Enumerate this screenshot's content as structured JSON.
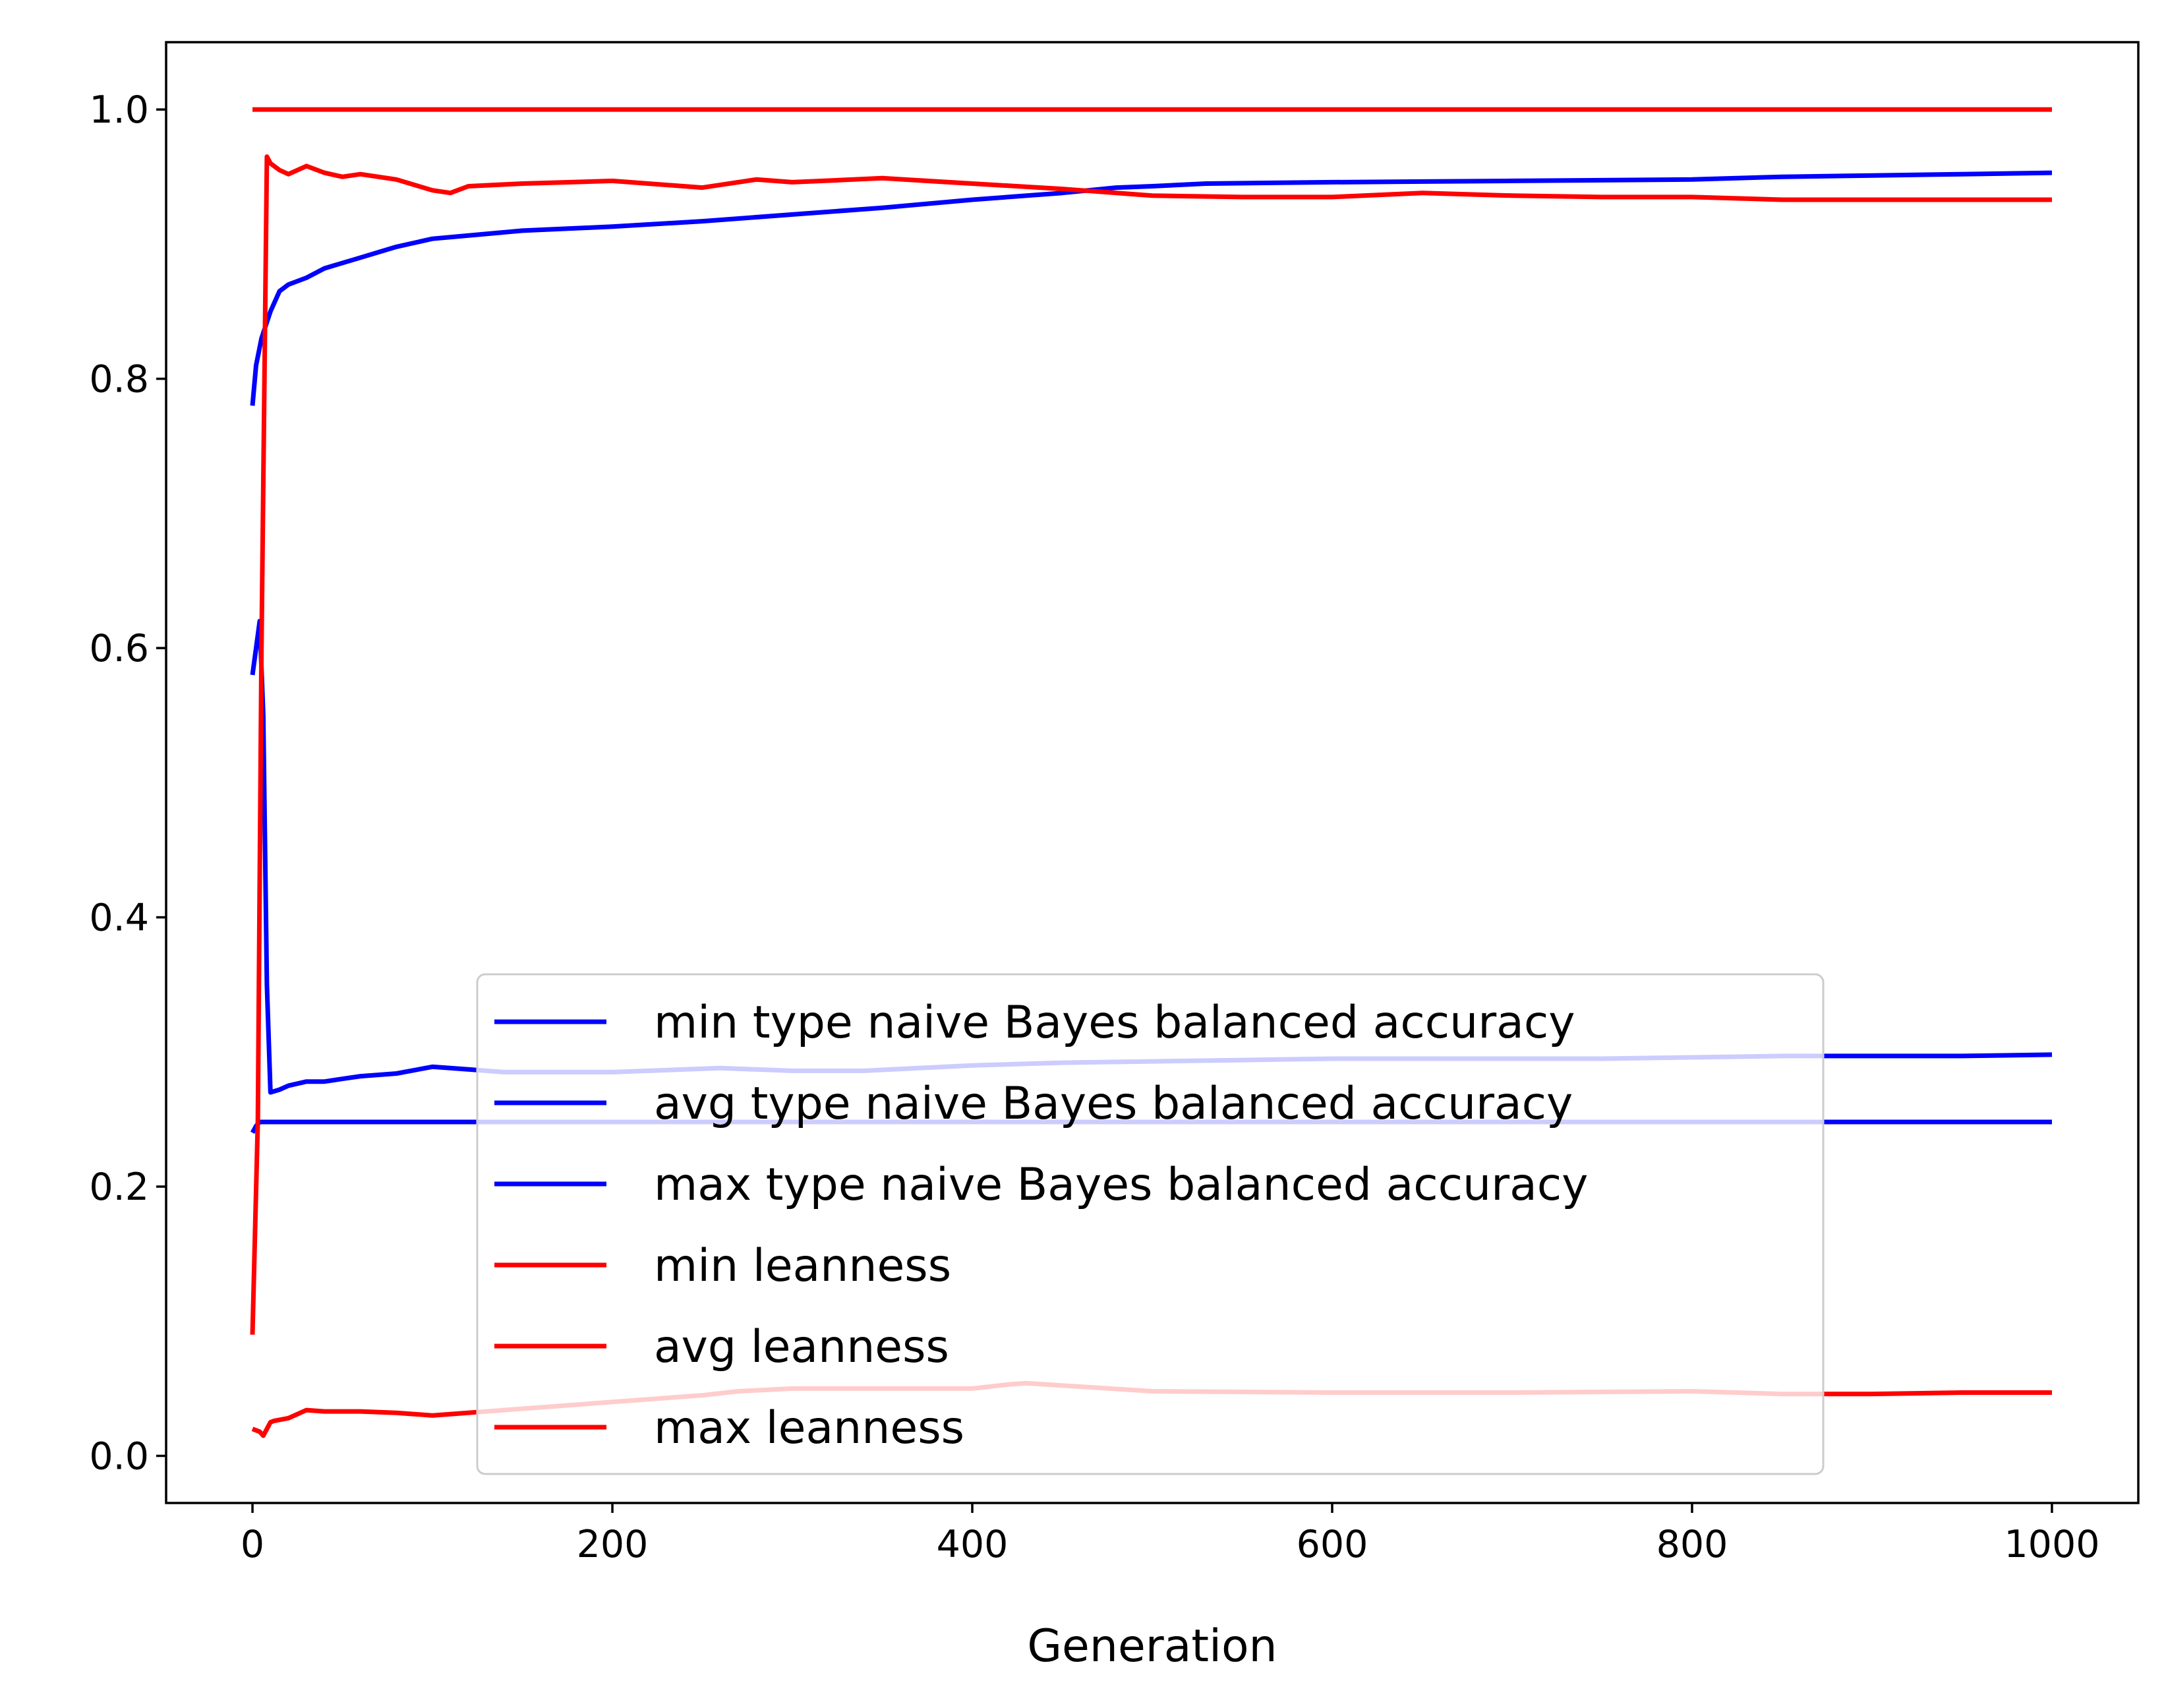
{
  "chart_data": {
    "type": "line",
    "title": "",
    "xlabel": "Generation",
    "ylabel": "",
    "xlim": [
      -48,
      1048
    ],
    "ylim": [
      -0.035,
      1.05
    ],
    "xticks": [
      0,
      200,
      400,
      600,
      800,
      1000
    ],
    "xtick_labels": [
      "0",
      "200",
      "400",
      "600",
      "800",
      "1000"
    ],
    "yticks": [
      0.0,
      0.2,
      0.4,
      0.6,
      0.8,
      1.0
    ],
    "ytick_labels": [
      "0.0",
      "0.2",
      "0.4",
      "0.6",
      "0.8",
      "1.0"
    ],
    "grid": false,
    "legend_position": "lower-center",
    "series": [
      {
        "name": "min type naive Bayes balanced accuracy",
        "color": "#0000ff",
        "x": [
          0,
          2,
          4,
          6,
          10,
          50,
          200,
          400,
          600,
          800,
          1000
        ],
        "y": [
          0.24,
          0.245,
          0.248,
          0.248,
          0.248,
          0.248,
          0.248,
          0.248,
          0.248,
          0.248,
          0.248
        ]
      },
      {
        "name": "avg type naive Bayes balanced accuracy",
        "color": "#0000ff",
        "x": [
          0,
          2,
          4,
          6,
          8,
          10,
          15,
          20,
          30,
          40,
          50,
          60,
          80,
          100,
          120,
          140,
          160,
          200,
          240,
          260,
          300,
          340,
          400,
          450,
          500,
          550,
          600,
          650,
          700,
          750,
          800,
          850,
          900,
          950,
          1000
        ],
        "y": [
          0.58,
          0.6,
          0.62,
          0.55,
          0.35,
          0.27,
          0.272,
          0.275,
          0.278,
          0.278,
          0.28,
          0.282,
          0.284,
          0.289,
          0.287,
          0.285,
          0.285,
          0.285,
          0.287,
          0.288,
          0.286,
          0.286,
          0.29,
          0.292,
          0.293,
          0.294,
          0.295,
          0.295,
          0.295,
          0.295,
          0.296,
          0.297,
          0.297,
          0.297,
          0.298
        ]
      },
      {
        "name": "max type naive Bayes balanced accuracy",
        "color": "#0000ff",
        "x": [
          0,
          2,
          5,
          10,
          15,
          20,
          30,
          40,
          60,
          80,
          100,
          150,
          200,
          250,
          300,
          350,
          400,
          450,
          480,
          500,
          530,
          600,
          700,
          800,
          850,
          900,
          950,
          1000
        ],
        "y": [
          0.78,
          0.81,
          0.83,
          0.85,
          0.865,
          0.87,
          0.875,
          0.882,
          0.89,
          0.898,
          0.904,
          0.91,
          0.913,
          0.917,
          0.922,
          0.927,
          0.933,
          0.938,
          0.942,
          0.943,
          0.945,
          0.946,
          0.947,
          0.948,
          0.95,
          0.951,
          0.952,
          0.953
        ]
      },
      {
        "name": "min leanness",
        "color": "#ff0000",
        "x": [
          0,
          4,
          6,
          8,
          10,
          12,
          20,
          30,
          40,
          60,
          80,
          100,
          150,
          200,
          250,
          270,
          300,
          400,
          420,
          430,
          500,
          600,
          700,
          800,
          850,
          900,
          950,
          1000
        ],
        "y": [
          0.02,
          0.018,
          0.015,
          0.02,
          0.025,
          0.026,
          0.028,
          0.034,
          0.033,
          0.033,
          0.032,
          0.03,
          0.035,
          0.04,
          0.045,
          0.048,
          0.05,
          0.05,
          0.053,
          0.054,
          0.048,
          0.047,
          0.047,
          0.048,
          0.046,
          0.046,
          0.047,
          0.047
        ]
      },
      {
        "name": "avg leanness",
        "color": "#ff0000",
        "x": [
          0,
          3,
          5,
          8,
          10,
          15,
          20,
          30,
          40,
          50,
          60,
          80,
          100,
          110,
          120,
          150,
          200,
          250,
          280,
          300,
          350,
          400,
          450,
          500,
          550,
          600,
          650,
          700,
          750,
          800,
          850,
          900,
          950,
          1000
        ],
        "y": [
          0.09,
          0.25,
          0.6,
          0.965,
          0.96,
          0.955,
          0.952,
          0.958,
          0.953,
          0.95,
          0.952,
          0.948,
          0.94,
          0.938,
          0.943,
          0.945,
          0.947,
          0.942,
          0.948,
          0.946,
          0.949,
          0.945,
          0.941,
          0.936,
          0.935,
          0.935,
          0.938,
          0.936,
          0.935,
          0.935,
          0.933,
          0.933,
          0.933,
          0.933
        ]
      },
      {
        "name": "max leanness",
        "color": "#ff0000",
        "x": [
          0,
          1000
        ],
        "y": [
          1.0,
          1.0
        ]
      }
    ]
  }
}
